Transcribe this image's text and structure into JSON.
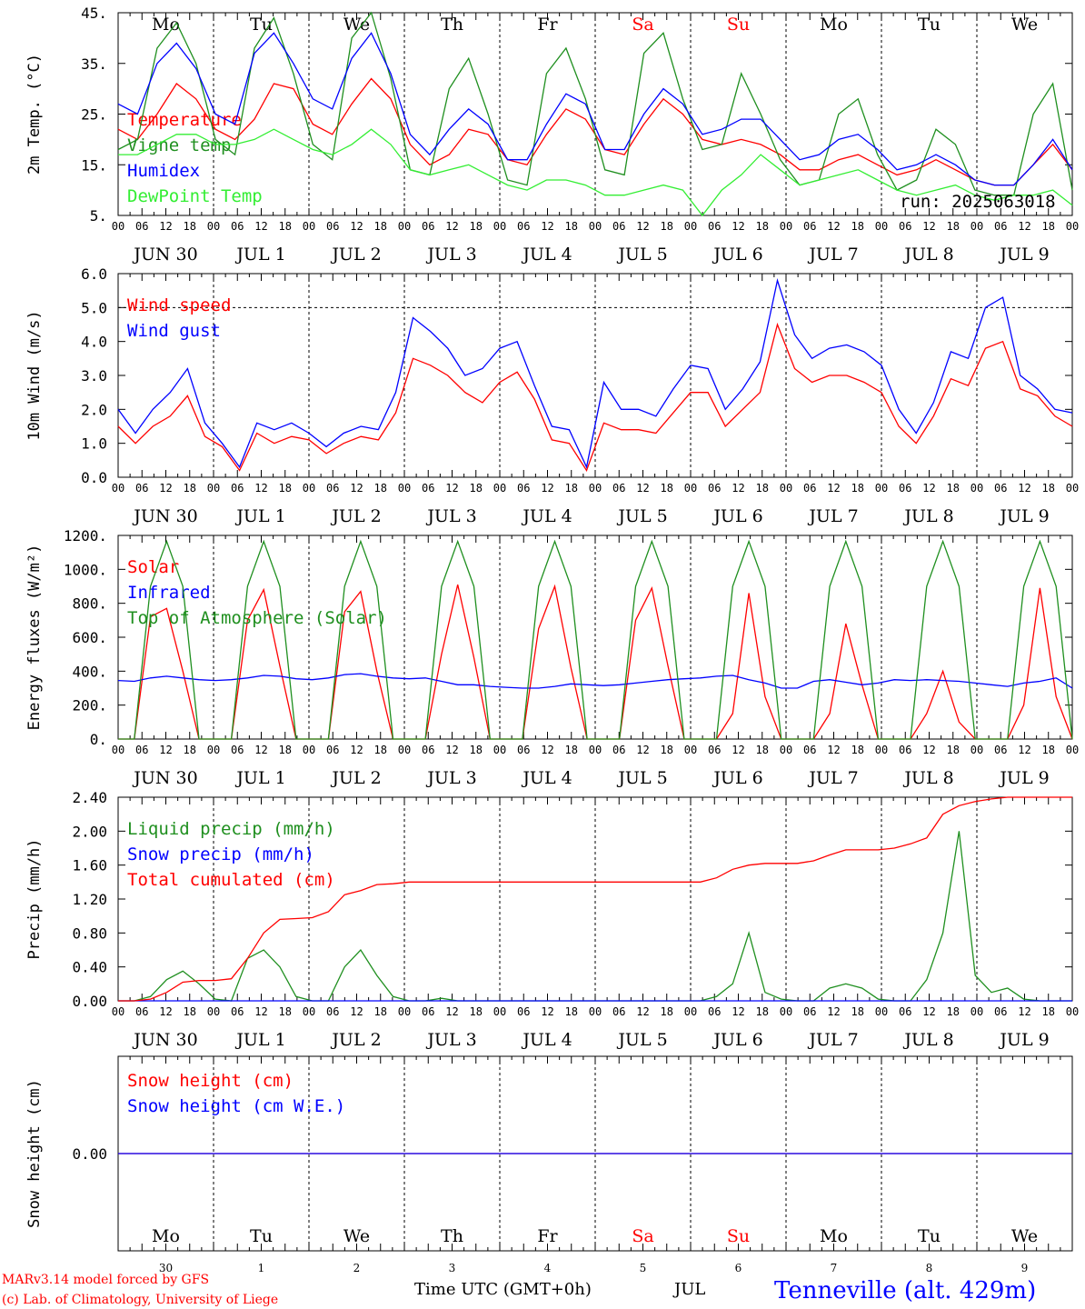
{
  "run_label": "run: 2025063018",
  "hour_ticks": [
    "00",
    "06",
    "12",
    "18"
  ],
  "days": [
    {
      "dow": "Mo",
      "label": "JUN 30",
      "num": "30",
      "color": "#000000"
    },
    {
      "dow": "Tu",
      "label": "JUL  1",
      "num": "1",
      "color": "#000000"
    },
    {
      "dow": "We",
      "label": "JUL  2",
      "num": "2",
      "color": "#000000"
    },
    {
      "dow": "Th",
      "label": "JUL  3",
      "num": "3",
      "color": "#000000"
    },
    {
      "dow": "Fr",
      "label": "JUL  4",
      "num": "4",
      "color": "#000000"
    },
    {
      "dow": "Sa",
      "label": "JUL  5",
      "num": "5",
      "color": "#ff0000"
    },
    {
      "dow": "Su",
      "label": "JUL  6",
      "num": "6",
      "color": "#ff0000"
    },
    {
      "dow": "Mo",
      "label": "JUL  7",
      "num": "7",
      "color": "#000000"
    },
    {
      "dow": "Tu",
      "label": "JUL  8",
      "num": "8",
      "color": "#000000"
    },
    {
      "dow": "We",
      "label": "JUL  9",
      "num": "9",
      "color": "#000000"
    }
  ],
  "footer": {
    "credit1": "MARv3.14 model forced by GFS",
    "credit2": "(c) Lab. of Climatology, University of Liege",
    "time_label": "Time UTC (GMT+0h)",
    "month_label": "JUL",
    "station": "Tenneville (alt. 429m)"
  },
  "colors": {
    "red": "#ff0000",
    "green": "#1f8f1f",
    "blue": "#0000ff",
    "lightgreen": "#33ee33"
  },
  "chart_data": [
    {
      "type": "line",
      "ylabel": "2m Temp. (°C)",
      "ylim": [
        5,
        45
      ],
      "yticks": [
        "5.",
        "15.",
        "25.",
        "35.",
        "45."
      ],
      "ytick_values": [
        5,
        15,
        25,
        35,
        45
      ],
      "x_unit": "hours since JUN 30 00 UTC",
      "x_step": 6,
      "series": [
        {
          "name": "Temperature",
          "color": "#ff0000",
          "values": [
            22,
            20,
            25,
            31,
            28,
            22,
            20,
            24,
            31,
            30,
            23,
            21,
            27,
            32,
            28,
            19,
            15,
            17,
            22,
            21,
            16,
            15,
            21,
            26,
            24,
            18,
            17,
            23,
            28,
            25,
            20,
            19,
            20,
            19,
            17,
            14,
            14,
            16,
            17,
            15,
            13,
            14,
            16,
            14,
            12,
            11,
            11,
            15,
            19,
            14
          ]
        },
        {
          "name": "Vigne temp",
          "color": "#1f8f1f",
          "values": [
            18,
            20,
            38,
            43,
            35,
            20,
            17,
            38,
            44,
            33,
            19,
            16,
            40,
            45,
            32,
            14,
            13,
            30,
            36,
            25,
            12,
            11,
            33,
            38,
            28,
            14,
            13,
            37,
            41,
            28,
            18,
            19,
            33,
            25,
            16,
            11,
            12,
            25,
            28,
            17,
            10,
            12,
            22,
            19,
            10,
            9,
            9,
            25,
            31,
            10
          ]
        },
        {
          "name": "Humidex",
          "color": "#0000ff",
          "values": [
            27,
            25,
            35,
            39,
            34,
            25,
            23,
            37,
            41,
            35,
            28,
            26,
            36,
            41,
            33,
            21,
            17,
            22,
            26,
            23,
            16,
            16,
            23,
            29,
            27,
            18,
            18,
            25,
            30,
            27,
            21,
            22,
            24,
            24,
            20,
            16,
            17,
            20,
            21,
            18,
            14,
            15,
            17,
            15,
            12,
            11,
            11,
            15,
            20,
            14
          ]
        },
        {
          "name": "DewPoint Temp",
          "color": "#33ee33",
          "values": [
            17,
            17,
            19,
            21,
            21,
            19,
            19,
            20,
            22,
            20,
            18,
            17,
            19,
            22,
            19,
            14,
            13,
            14,
            15,
            13,
            11,
            10,
            12,
            12,
            11,
            9,
            9,
            10,
            11,
            10,
            5,
            10,
            13,
            17,
            14,
            11,
            12,
            13,
            14,
            12,
            10,
            9,
            10,
            11,
            9,
            8,
            9,
            9,
            10,
            7
          ]
        }
      ]
    },
    {
      "type": "line",
      "ylabel": "10m Wind (m/s)",
      "ylim": [
        0,
        6
      ],
      "yticks": [
        "0.0",
        "1.0",
        "2.0",
        "3.0",
        "4.0",
        "5.0",
        "6.0"
      ],
      "ytick_values": [
        0,
        1,
        2,
        3,
        4,
        5,
        6
      ],
      "ref_line": 5,
      "x_unit": "hours since JUN 30 00 UTC",
      "x_step": 6,
      "series": [
        {
          "name": "Wind speed",
          "color": "#ff0000",
          "values": [
            1.5,
            1.0,
            1.5,
            1.8,
            2.4,
            1.2,
            0.9,
            0.2,
            1.3,
            1.0,
            1.2,
            1.1,
            0.7,
            1.0,
            1.2,
            1.1,
            1.9,
            3.5,
            3.3,
            3.0,
            2.5,
            2.2,
            2.8,
            3.1,
            2.3,
            1.1,
            1.0,
            0.2,
            1.6,
            1.4,
            1.4,
            1.3,
            1.9,
            2.5,
            2.5,
            1.5,
            2.0,
            2.5,
            4.5,
            3.2,
            2.8,
            3.0,
            3.0,
            2.8,
            2.5,
            1.5,
            1.0,
            1.8,
            2.9,
            2.7,
            3.8,
            4.0,
            2.6,
            2.4,
            1.8,
            1.5
          ]
        },
        {
          "name": "Wind gust",
          "color": "#0000ff",
          "values": [
            2.0,
            1.3,
            2.0,
            2.5,
            3.2,
            1.6,
            1.0,
            0.3,
            1.6,
            1.4,
            1.6,
            1.3,
            0.9,
            1.3,
            1.5,
            1.4,
            2.5,
            4.7,
            4.3,
            3.8,
            3.0,
            3.2,
            3.8,
            4.0,
            2.7,
            1.5,
            1.4,
            0.3,
            2.8,
            2.0,
            2.0,
            1.8,
            2.6,
            3.3,
            3.2,
            2.0,
            2.6,
            3.4,
            5.8,
            4.2,
            3.5,
            3.8,
            3.9,
            3.7,
            3.3,
            2.0,
            1.3,
            2.2,
            3.7,
            3.5,
            5.0,
            5.3,
            3.0,
            2.6,
            2.0,
            1.9
          ]
        }
      ]
    },
    {
      "type": "line",
      "ylabel": "Energy fluxes (W/m²)",
      "ylim": [
        0,
        1200
      ],
      "yticks": [
        "0.",
        "200.",
        "400.",
        "600.",
        "800.",
        "1000.",
        "1200."
      ],
      "ytick_values": [
        0,
        200,
        400,
        600,
        800,
        1000,
        1200
      ],
      "x_unit": "hours since JUN 30 00 UTC",
      "x_step": 6,
      "series": [
        {
          "name": "Solar",
          "color": "#ff0000",
          "values": [
            0,
            0,
            720,
            770,
            400,
            0,
            0,
            0,
            700,
            880,
            430,
            0,
            0,
            0,
            750,
            870,
            400,
            0,
            0,
            0,
            500,
            910,
            480,
            0,
            0,
            0,
            650,
            900,
            420,
            0,
            0,
            0,
            700,
            890,
            430,
            0,
            0,
            0,
            150,
            860,
            250,
            0,
            0,
            0,
            150,
            680,
            320,
            0,
            0,
            0,
            150,
            400,
            100,
            0,
            0,
            0,
            200,
            890,
            250,
            0
          ]
        },
        {
          "name": "Infrared",
          "color": "#0000ff",
          "values": [
            345,
            340,
            360,
            370,
            360,
            350,
            345,
            350,
            360,
            375,
            370,
            355,
            350,
            360,
            380,
            385,
            370,
            360,
            355,
            360,
            340,
            320,
            320,
            310,
            305,
            300,
            300,
            310,
            325,
            320,
            315,
            320,
            330,
            340,
            350,
            355,
            360,
            370,
            375,
            350,
            330,
            300,
            300,
            340,
            350,
            335,
            320,
            330,
            350,
            345,
            350,
            345,
            340,
            330,
            320,
            310,
            330,
            340,
            360,
            300
          ]
        },
        {
          "name": "Top of Atmosphere (Solar)",
          "color": "#1f8f1f",
          "values": [
            0,
            0,
            900,
            1165,
            900,
            0,
            0,
            0,
            900,
            1165,
            900,
            0,
            0,
            0,
            900,
            1165,
            900,
            0,
            0,
            0,
            900,
            1165,
            900,
            0,
            0,
            0,
            900,
            1165,
            900,
            0,
            0,
            0,
            900,
            1165,
            900,
            0,
            0,
            0,
            900,
            1165,
            900,
            0,
            0,
            0,
            900,
            1165,
            900,
            0,
            0,
            0,
            900,
            1165,
            900,
            0,
            0,
            0,
            900,
            1165,
            900,
            0
          ]
        }
      ]
    },
    {
      "type": "line",
      "ylabel": "Precip (mm/h)",
      "ylim": [
        0,
        2.4
      ],
      "yticks": [
        "0.00",
        "0.40",
        "0.80",
        "1.20",
        "1.60",
        "2.00",
        "2.40"
      ],
      "ytick_values": [
        0,
        0.4,
        0.8,
        1.2,
        1.6,
        2.0,
        2.4
      ],
      "x_unit": "hours since JUN 30 00 UTC",
      "x_step": 6,
      "series": [
        {
          "name": "Liquid precip (mm/h)",
          "color": "#1f8f1f",
          "values": [
            0,
            0,
            0.05,
            0.25,
            0.35,
            0.2,
            0.02,
            0,
            0.5,
            0.6,
            0.4,
            0.05,
            0,
            0,
            0.4,
            0.6,
            0.3,
            0.05,
            0,
            0,
            0.03,
            0,
            0,
            0,
            0,
            0,
            0,
            0,
            0,
            0,
            0,
            0,
            0,
            0,
            0,
            0,
            0,
            0.05,
            0.2,
            0.8,
            0.1,
            0.02,
            0,
            0,
            0.15,
            0.2,
            0.15,
            0.02,
            0,
            0,
            0.25,
            0.8,
            2.0,
            0.3,
            0.1,
            0.15,
            0.02,
            0,
            0,
            0
          ]
        },
        {
          "name": "Snow precip (mm/h)",
          "color": "#0000ff",
          "values": [
            0,
            0,
            0,
            0,
            0,
            0,
            0,
            0,
            0,
            0,
            0,
            0,
            0,
            0,
            0,
            0,
            0,
            0,
            0,
            0,
            0,
            0,
            0,
            0,
            0,
            0,
            0,
            0,
            0,
            0,
            0,
            0,
            0,
            0,
            0,
            0,
            0,
            0,
            0,
            0,
            0,
            0,
            0,
            0,
            0,
            0,
            0,
            0,
            0,
            0,
            0,
            0,
            0,
            0,
            0,
            0,
            0,
            0,
            0,
            0
          ]
        },
        {
          "name": "Total cumulated (cm)",
          "color": "#ff0000",
          "values": [
            0,
            0,
            0.02,
            0.1,
            0.22,
            0.24,
            0.24,
            0.26,
            0.5,
            0.8,
            0.96,
            0.97,
            0.98,
            1.05,
            1.25,
            1.3,
            1.37,
            1.38,
            1.4,
            1.4,
            1.4,
            1.4,
            1.4,
            1.4,
            1.4,
            1.4,
            1.4,
            1.4,
            1.4,
            1.4,
            1.4,
            1.4,
            1.4,
            1.4,
            1.4,
            1.4,
            1.4,
            1.45,
            1.55,
            1.6,
            1.62,
            1.62,
            1.62,
            1.65,
            1.72,
            1.78,
            1.78,
            1.78,
            1.8,
            1.85,
            1.92,
            2.2,
            2.3,
            2.35,
            2.38,
            2.4,
            2.4,
            2.4,
            2.4,
            2.4
          ]
        }
      ]
    },
    {
      "type": "line",
      "ylabel": "Snow height (cm)",
      "yticks": [
        "0.00"
      ],
      "ytick_values": [
        0
      ],
      "ylim": [
        -1,
        1
      ],
      "x_unit": "hours since JUN 30 00 UTC",
      "x_step": 6,
      "series": [
        {
          "name": "Snow height (cm)",
          "color": "#ff0000",
          "values": [
            0,
            0
          ]
        },
        {
          "name": "Snow height (cm W.E.)",
          "color": "#0000ff",
          "values": [
            0,
            0
          ]
        }
      ]
    }
  ]
}
